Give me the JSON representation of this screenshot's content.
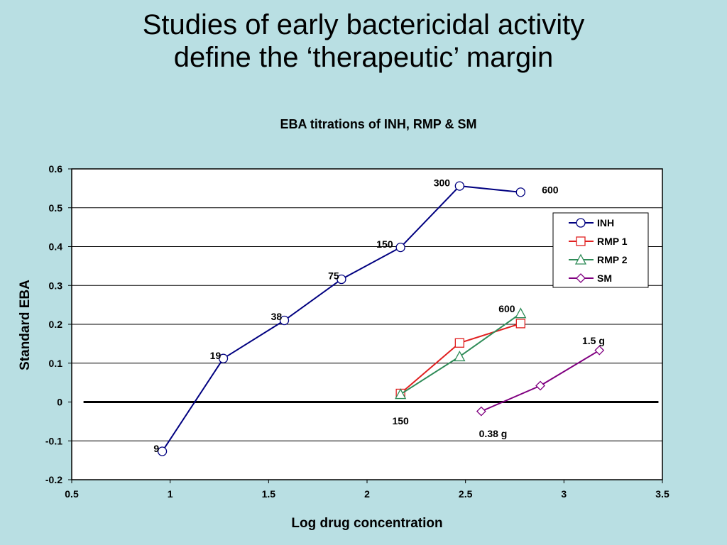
{
  "slide": {
    "title_line1": "Studies of early bactericidal activity",
    "title_line2": "define the ‘therapeutic’ margin"
  },
  "chart_data": {
    "type": "line",
    "title": "EBA titrations of INH, RMP & SM",
    "xlabel": "Log drug concentration",
    "ylabel": "Standard EBA",
    "xlim": [
      0.5,
      3.5
    ],
    "ylim": [
      -0.2,
      0.6
    ],
    "xticks": [
      0.5,
      1,
      1.5,
      2,
      2.5,
      3,
      3.5
    ],
    "yticks": [
      -0.2,
      -0.1,
      0,
      0.1,
      0.2,
      0.3,
      0.4,
      0.5,
      0.6
    ],
    "grid": "horizontal",
    "legend_position": "top-right",
    "series": [
      {
        "name": "INH",
        "color": "#000080",
        "marker": "circle",
        "x": [
          0.96,
          1.27,
          1.58,
          1.87,
          2.17,
          2.47,
          2.78
        ],
        "y": [
          -0.127,
          0.112,
          0.21,
          0.316,
          0.398,
          0.556,
          0.54
        ]
      },
      {
        "name": "RMP 1",
        "color": "#e02020",
        "marker": "square",
        "x": [
          2.17,
          2.47,
          2.78
        ],
        "y": [
          0.022,
          0.152,
          0.202
        ]
      },
      {
        "name": "RMP 2",
        "color": "#2e8b57",
        "marker": "triangle",
        "x": [
          2.17,
          2.47,
          2.78
        ],
        "y": [
          0.02,
          0.117,
          0.228
        ]
      },
      {
        "name": "SM",
        "color": "#800080",
        "marker": "diamond",
        "x": [
          2.58,
          2.88,
          3.18
        ],
        "y": [
          -0.024,
          0.042,
          0.133
        ]
      }
    ],
    "annotations": [
      {
        "text": "9",
        "x": 0.93,
        "y": -0.12,
        "anchor": "middle"
      },
      {
        "text": "19",
        "x": 1.23,
        "y": 0.12,
        "anchor": "middle"
      },
      {
        "text": "38",
        "x": 1.54,
        "y": 0.22,
        "anchor": "middle"
      },
      {
        "text": "75",
        "x": 1.83,
        "y": 0.325,
        "anchor": "middle"
      },
      {
        "text": "150",
        "x": 2.09,
        "y": 0.406,
        "anchor": "middle"
      },
      {
        "text": "300",
        "x": 2.38,
        "y": 0.564,
        "anchor": "middle"
      },
      {
        "text": "600",
        "x": 2.93,
        "y": 0.546,
        "anchor": "middle"
      },
      {
        "text": "600",
        "x": 2.71,
        "y": 0.24,
        "anchor": "middle"
      },
      {
        "text": "150",
        "x": 2.17,
        "y": -0.048,
        "anchor": "middle"
      },
      {
        "text": "1.5 g",
        "x": 3.15,
        "y": 0.158,
        "anchor": "middle"
      },
      {
        "text": "0.38 g",
        "x": 2.64,
        "y": -0.081,
        "anchor": "middle"
      }
    ]
  }
}
